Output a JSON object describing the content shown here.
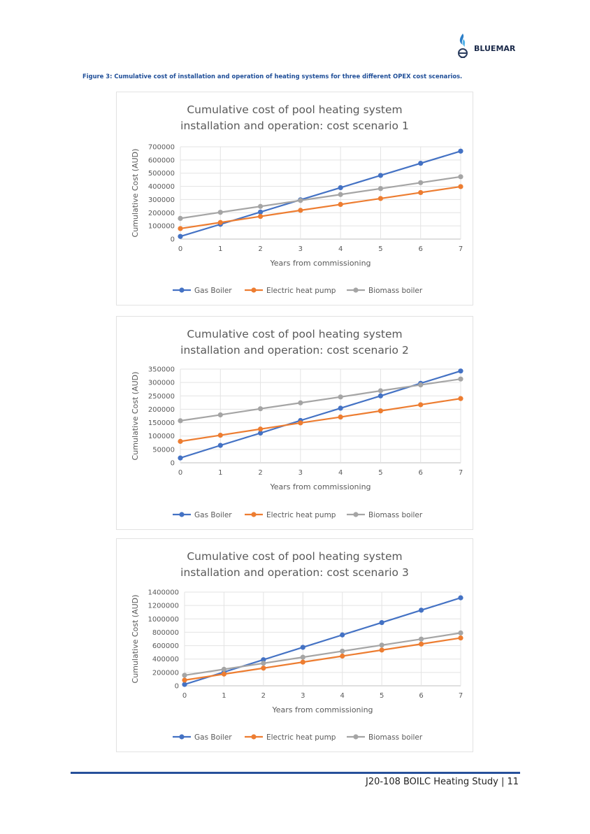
{
  "header": {
    "logo_text": "BLUEMAR",
    "figure_caption": "Figure 3: Cumulative cost of installation and operation of heating systems for three different OPEX cost scenarios."
  },
  "footer": {
    "text": "J20-108 BOILC Heating Study | 11"
  },
  "colors": {
    "gas": "#4472c4",
    "electric": "#ed7d31",
    "biomass": "#a5a5a5",
    "caption": "#1f4e98",
    "footer_line": "#27509a"
  },
  "chart_data": [
    {
      "type": "line",
      "title_line1": "Cumulative cost of pool heating system",
      "title_line2": "installation and operation: cost scenario 1",
      "xlabel": "Years from commissioning",
      "ylabel": "Cumulative Cost (AUD)",
      "x": [
        0,
        1,
        2,
        3,
        4,
        5,
        6,
        7
      ],
      "ylim": [
        0,
        700000
      ],
      "yticks": [
        "0",
        "100000",
        "200000",
        "300000",
        "400000",
        "500000",
        "600000",
        "700000"
      ],
      "legend_position": "bottom",
      "series": [
        {
          "name": "Gas Boiler",
          "values": [
            20000,
            112000,
            205000,
            298000,
            390000,
            483000,
            575000,
            667000
          ]
        },
        {
          "name": "Electric heat pump",
          "values": [
            80000,
            126000,
            172000,
            218000,
            263000,
            308000,
            353000,
            398000
          ]
        },
        {
          "name": "Biomass boiler",
          "values": [
            157000,
            203000,
            248000,
            293000,
            338000,
            383000,
            428000,
            473000
          ]
        }
      ]
    },
    {
      "type": "line",
      "title_line1": "Cumulative cost of pool heating system",
      "title_line2": "installation and operation: cost scenario 2",
      "xlabel": "Years from commissioning",
      "ylabel": "Cumulative Cost (AUD)",
      "x": [
        0,
        1,
        2,
        3,
        4,
        5,
        6,
        7
      ],
      "ylim": [
        0,
        350000
      ],
      "yticks": [
        "0",
        "50000",
        "100000",
        "150000",
        "200000",
        "250000",
        "300000",
        "350000"
      ],
      "legend_position": "bottom",
      "series": [
        {
          "name": "Gas Boiler",
          "values": [
            18000,
            65000,
            111000,
            158000,
            204000,
            250000,
            297000,
            343000
          ]
        },
        {
          "name": "Electric heat pump",
          "values": [
            80000,
            103000,
            126000,
            149000,
            171000,
            194000,
            217000,
            240000
          ]
        },
        {
          "name": "Biomass boiler",
          "values": [
            157000,
            179000,
            202000,
            224000,
            246000,
            269000,
            291000,
            313000
          ]
        }
      ]
    },
    {
      "type": "line",
      "title_line1": "Cumulative cost of pool heating system",
      "title_line2": "installation and operation: cost scenario 3",
      "xlabel": "Years from commissioning",
      "ylabel": "Cumulative Cost (AUD)",
      "x": [
        0,
        1,
        2,
        3,
        4,
        5,
        6,
        7
      ],
      "ylim": [
        0,
        1400000
      ],
      "yticks": [
        "0",
        "200000",
        "400000",
        "600000",
        "800000",
        "1000000",
        "1200000",
        "1400000"
      ],
      "legend_position": "bottom",
      "series": [
        {
          "name": "Gas Boiler",
          "values": [
            20000,
            205000,
            390000,
            575000,
            760000,
            945000,
            1130000,
            1315000
          ]
        },
        {
          "name": "Electric heat pump",
          "values": [
            85000,
            175000,
            264000,
            354000,
            444000,
            534000,
            624000,
            715000
          ]
        },
        {
          "name": "Biomass boiler",
          "values": [
            157000,
            247000,
            337000,
            427000,
            518000,
            608000,
            698000,
            790000
          ]
        }
      ]
    }
  ]
}
